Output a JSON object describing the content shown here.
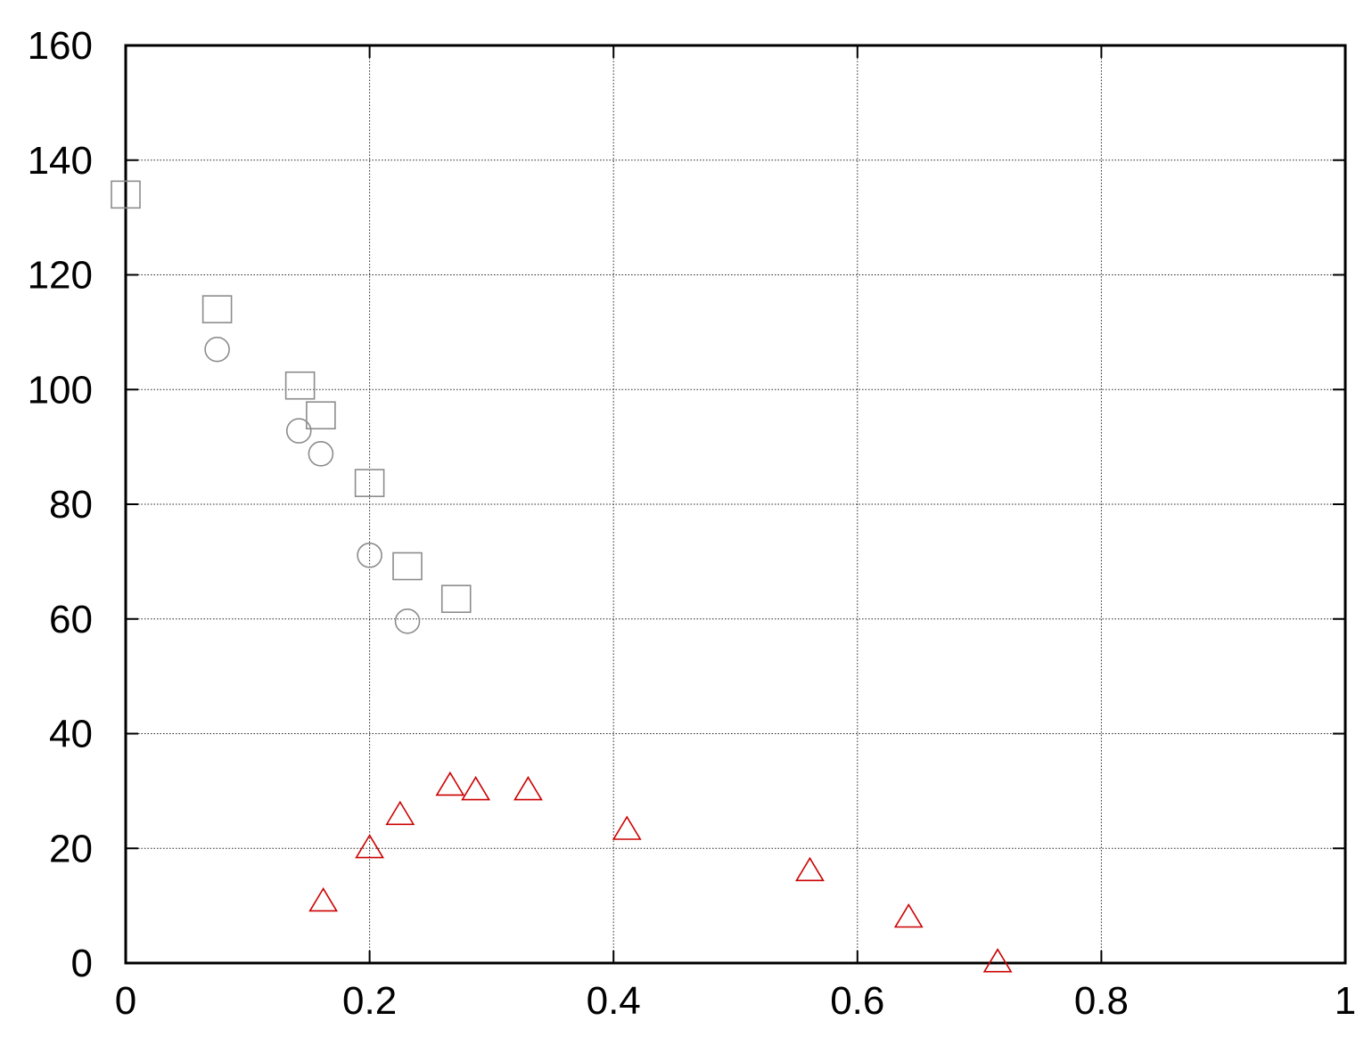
{
  "chart_data": {
    "type": "scatter",
    "xlim": [
      0,
      1
    ],
    "ylim": [
      0,
      160
    ],
    "x_ticks": [
      {
        "value": 0,
        "label": "0"
      },
      {
        "value": 0.2,
        "label": "0.2"
      },
      {
        "value": 0.4,
        "label": "0.4"
      },
      {
        "value": 0.6,
        "label": "0.6"
      },
      {
        "value": 0.8,
        "label": "0.8"
      },
      {
        "value": 1,
        "label": "1"
      }
    ],
    "y_ticks": [
      {
        "value": 0,
        "label": "0"
      },
      {
        "value": 20,
        "label": "20"
      },
      {
        "value": 40,
        "label": "40"
      },
      {
        "value": 60,
        "label": "60"
      },
      {
        "value": 80,
        "label": "80"
      },
      {
        "value": 100,
        "label": "100"
      },
      {
        "value": 120,
        "label": "120"
      },
      {
        "value": 140,
        "label": "140"
      },
      {
        "value": 160,
        "label": "160"
      }
    ],
    "grid": true,
    "legend": false,
    "series": [
      {
        "marker": "square",
        "color": "#8c8c8c",
        "points": [
          {
            "x": 0.0,
            "y": 134
          },
          {
            "x": 0.075,
            "y": 114
          },
          {
            "x": 0.143,
            "y": 100.7
          },
          {
            "x": 0.16,
            "y": 95.5
          },
          {
            "x": 0.2,
            "y": 83.7
          },
          {
            "x": 0.231,
            "y": 69.2
          },
          {
            "x": 0.271,
            "y": 63.5
          }
        ]
      },
      {
        "marker": "circle",
        "color": "#8c8c8c",
        "points": [
          {
            "x": 0.075,
            "y": 107
          },
          {
            "x": 0.142,
            "y": 92.8
          },
          {
            "x": 0.16,
            "y": 88.8
          },
          {
            "x": 0.2,
            "y": 71.1
          },
          {
            "x": 0.231,
            "y": 59.6
          }
        ]
      },
      {
        "marker": "triangle",
        "color": "#cc0000",
        "points": [
          {
            "x": 0.162,
            "y": 10.8
          },
          {
            "x": 0.2,
            "y": 20.1
          },
          {
            "x": 0.225,
            "y": 25.9
          },
          {
            "x": 0.266,
            "y": 31.0
          },
          {
            "x": 0.287,
            "y": 30.2
          },
          {
            "x": 0.33,
            "y": 30.2
          },
          {
            "x": 0.411,
            "y": 23.3
          },
          {
            "x": 0.561,
            "y": 16.1
          },
          {
            "x": 0.642,
            "y": 8.0
          },
          {
            "x": 0.715,
            "y": 0.2
          }
        ]
      }
    ]
  }
}
